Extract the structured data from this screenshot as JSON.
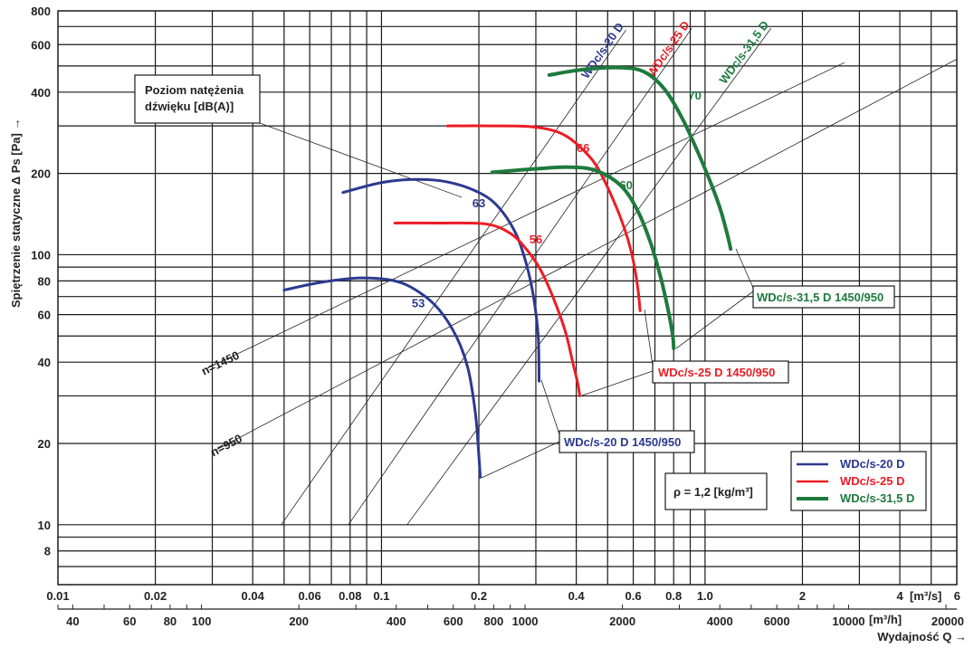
{
  "chart_data": {
    "type": "line",
    "title": "",
    "xlabel": "Wydajność Q →",
    "ylabel": "Spiętrzenie statyczne Δ Ps [Pa] →",
    "x_scale": "log",
    "y_scale": "log",
    "xlim": [
      0.01,
      6
    ],
    "ylim": [
      6,
      800
    ],
    "x_unit_primary": "[m³/s]",
    "x_unit_secondary": "[m³/h]",
    "x_ticks_primary": [
      "0.01",
      "0.02",
      "0.04",
      "0.06",
      "0.08",
      "0.1",
      "0.2",
      "0.4",
      "0.6",
      "0.8",
      "1.0",
      "2",
      "4",
      "6"
    ],
    "x_ticks_primary_values": [
      0.01,
      0.02,
      0.04,
      0.06,
      0.08,
      0.1,
      0.2,
      0.4,
      0.6,
      0.8,
      1.0,
      2,
      4,
      6
    ],
    "x_ticks_secondary": [
      "40",
      "60",
      "80",
      "100",
      "200",
      "400",
      "600",
      "800",
      "1000",
      "2000",
      "4000",
      "6000",
      "10000",
      "20000"
    ],
    "x_ticks_secondary_values": [
      40,
      60,
      80,
      100,
      200,
      400,
      600,
      800,
      1000,
      2000,
      4000,
      6000,
      10000,
      20000
    ],
    "x_grid_values": [
      0.02,
      0.03,
      0.04,
      0.05,
      0.06,
      0.07,
      0.08,
      0.09,
      0.1,
      0.2,
      0.3,
      0.4,
      0.5,
      0.6,
      0.7,
      0.8,
      0.9,
      1.0,
      2,
      3,
      4,
      5
    ],
    "y_ticks": [
      "800",
      "600",
      "400",
      "200",
      "100",
      "80",
      "60",
      "40",
      "20",
      "10",
      "8"
    ],
    "y_ticks_values": [
      800,
      600,
      400,
      200,
      100,
      80,
      60,
      40,
      20,
      10,
      8
    ],
    "y_grid_values": [
      7,
      8,
      9,
      10,
      20,
      30,
      40,
      50,
      60,
      70,
      80,
      90,
      100,
      200,
      300,
      400,
      500,
      600,
      700,
      800
    ],
    "grid": true,
    "series": [
      {
        "name": "WDc/s-20 D n=1450",
        "color": "#2b3990",
        "width": 3,
        "x": [
          0.076,
          0.1,
          0.127,
          0.16,
          0.2,
          0.23,
          0.26,
          0.28,
          0.295,
          0.305,
          0.307
        ],
        "y": [
          170,
          185,
          190,
          186,
          170,
          150,
          120,
          93,
          70,
          50,
          34
        ]
      },
      {
        "name": "WDc/s-20 D n=950",
        "color": "#2b3990",
        "width": 3,
        "x": [
          0.05,
          0.065,
          0.086,
          0.11,
          0.13,
          0.15,
          0.17,
          0.185,
          0.195,
          0.2,
          0.202
        ],
        "y": [
          74,
          79,
          82,
          80,
          73,
          63,
          50,
          38,
          26,
          18,
          15
        ]
      },
      {
        "name": "WDc/s-25 D n=1450",
        "color": "#ed1c24",
        "width": 3,
        "x": [
          0.16,
          0.22,
          0.29,
          0.35,
          0.4,
          0.46,
          0.52,
          0.57,
          0.6,
          0.62,
          0.63
        ],
        "y": [
          300,
          300,
          298,
          285,
          258,
          215,
          160,
          120,
          95,
          75,
          62
        ]
      },
      {
        "name": "WDc/s-25 D n=950",
        "color": "#ed1c24",
        "width": 3,
        "x": [
          0.11,
          0.15,
          0.21,
          0.25,
          0.28,
          0.31,
          0.34,
          0.37,
          0.39,
          0.405,
          0.41
        ],
        "y": [
          131,
          131,
          130,
          120,
          105,
          88,
          69,
          52,
          40,
          33,
          30
        ]
      },
      {
        "name": "WDc/s-31,5 D n=1450",
        "color": "#1e7a3e",
        "width": 4,
        "x": [
          0.33,
          0.42,
          0.55,
          0.65,
          0.75,
          0.85,
          0.95,
          1.05,
          1.12,
          1.18,
          1.2
        ],
        "y": [
          463,
          485,
          493,
          475,
          410,
          320,
          240,
          180,
          145,
          115,
          105
        ]
      },
      {
        "name": "WDc/s-31,5 D n=950",
        "color": "#1e7a3e",
        "width": 4,
        "x": [
          0.22,
          0.3,
          0.38,
          0.46,
          0.55,
          0.62,
          0.68,
          0.73,
          0.77,
          0.795,
          0.8
        ],
        "y": [
          202,
          208,
          211,
          205,
          180,
          145,
          110,
          82,
          62,
          50,
          45
        ]
      }
    ],
    "system_lines": [
      {
        "name": "n=1450",
        "label": "n=1450",
        "x": [
          0.029,
          2.7
        ],
        "y": [
          38,
          515
        ]
      },
      {
        "name": "n=950",
        "label": "n=950",
        "x": [
          0.031,
          6.0
        ],
        "y": [
          19,
          530
        ]
      },
      {
        "name": "WDc/s-20 D",
        "label": "WDc/s-20 D",
        "color": "#2b3990",
        "x": [
          0.049,
          0.57
        ],
        "y": [
          10,
          680
        ]
      },
      {
        "name": "WDc/s-25 D",
        "label": "WDc/s-25 D",
        "color": "#ed1c24",
        "x": [
          0.079,
          0.91
        ],
        "y": [
          10,
          690
        ]
      },
      {
        "name": "WDc/s-31,5 D",
        "label": "WDc/s-31,5 D",
        "color": "#1e7a3e",
        "x": [
          0.12,
          1.6
        ],
        "y": [
          10,
          690
        ]
      }
    ],
    "noise_levels": [
      {
        "value": "53",
        "color": "#2b3990",
        "x": 0.13,
        "y": 64
      },
      {
        "value": "63",
        "color": "#2b3990",
        "x": 0.2,
        "y": 150
      },
      {
        "value": "56",
        "color": "#ed1c24",
        "x": 0.3,
        "y": 110
      },
      {
        "value": "66",
        "color": "#ed1c24",
        "x": 0.42,
        "y": 240
      },
      {
        "value": "60",
        "color": "#1e7a3e",
        "x": 0.57,
        "y": 175
      },
      {
        "value": "70",
        "color": "#1e7a3e",
        "x": 0.93,
        "y": 375
      }
    ],
    "annotations": {
      "noise_box_line1": "Poziom natężenia",
      "noise_box_line2": "dźwięku [dB(A)]",
      "callout_20": "WDc/s-20 D 1450/950",
      "callout_25": "WDc/s-25 D 1450/950",
      "callout_31": "WDc/s-31,5 D 1450/950",
      "density": "ρ = 1,2 [kg/m³]"
    },
    "legend": {
      "placement": "bottom-right",
      "entries": [
        {
          "label": "WDc/s-20 D",
          "color": "#2b3990"
        },
        {
          "label": "WDc/s-25 D",
          "color": "#ed1c24"
        },
        {
          "label": "WDc/s-31,5 D",
          "color": "#1e7a3e"
        }
      ]
    }
  }
}
